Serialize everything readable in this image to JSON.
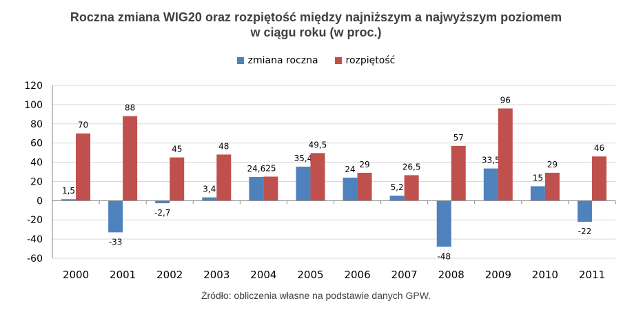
{
  "colors": {
    "series1": "#4f81bd",
    "series2": "#c0504d",
    "grid": "#d9d9d9",
    "axis": "#868686"
  },
  "chart_data": {
    "type": "bar",
    "title_line1": "Roczna zmiana WIG20 oraz rozpiętość między najniższym a najwyższym poziomem",
    "title_line2": "w ciągu roku (w proc.)",
    "categories": [
      "2000",
      "2001",
      "2002",
      "2003",
      "2004",
      "2005",
      "2006",
      "2007",
      "2008",
      "2009",
      "2010",
      "2011"
    ],
    "series": [
      {
        "name": "zmiana roczna",
        "values": [
          1.5,
          -33,
          -2.7,
          3.4,
          24.6,
          35.4,
          24,
          5.2,
          -48,
          33.5,
          15,
          -22
        ],
        "labels": [
          "1,5",
          "-33",
          "-2,7",
          "3,4",
          "24,6",
          "35,4",
          "24",
          "5,2",
          "-48",
          "33,5",
          "15",
          "-22"
        ]
      },
      {
        "name": "rozpiętość",
        "values": [
          70,
          88,
          45,
          48,
          25,
          49.5,
          29,
          26.5,
          57,
          96,
          29,
          46
        ],
        "labels": [
          "70",
          "88",
          "45",
          "48",
          "25",
          "49,5",
          "29",
          "26,5",
          "57",
          "96",
          "29",
          "46"
        ]
      }
    ],
    "ylim": [
      -60,
      120
    ],
    "yticks": [
      -60,
      -40,
      -20,
      0,
      20,
      40,
      60,
      80,
      100,
      120
    ],
    "grid": true,
    "legend": "top-center",
    "source": "Źródło: obliczenia własne na podstawie danych GPW."
  }
}
